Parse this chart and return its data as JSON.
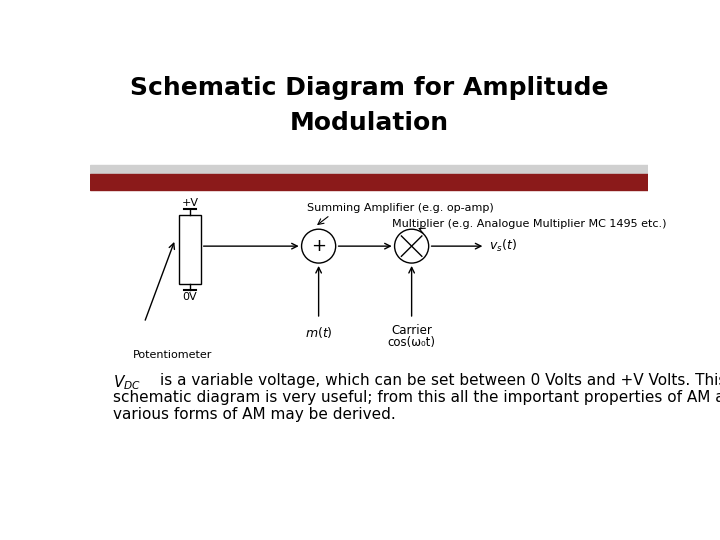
{
  "title_line1": "Schematic Diagram for Amplitude",
  "title_line2": "Modulation",
  "title_fontsize": 18,
  "title_fontweight": "bold",
  "bg_color": "#ffffff",
  "bar_color_grey": "#c8c8c8",
  "bar_color_dark": "#8b1a1a",
  "body_line1a": " is a variable voltage, which can be set between 0 Volts and +",
  "body_line1b": "V",
  "body_line1c": " Volts. This",
  "body_line2": "schematic diagram is very useful; from this all the important properties of AM and",
  "body_line3": "various forms of AM may be derived.",
  "vdc_label": "$V_{DC}$",
  "summing_amp_label": "Summing Amplifier (e.g. op-amp)",
  "multiplier_label": "Multiplier (e.g. Analogue Multiplier MC 1495 etc.)",
  "vs_label": "$v_s(t)$",
  "mt_label": "$m(t)$",
  "carrier_label1": "Carrier",
  "carrier_label2": "cos(ω₀t)",
  "potentiometer_label": "Potentiometer",
  "plus_v_label": "+V",
  "zero_v_label": "0V",
  "font_family": "DejaVu Sans"
}
